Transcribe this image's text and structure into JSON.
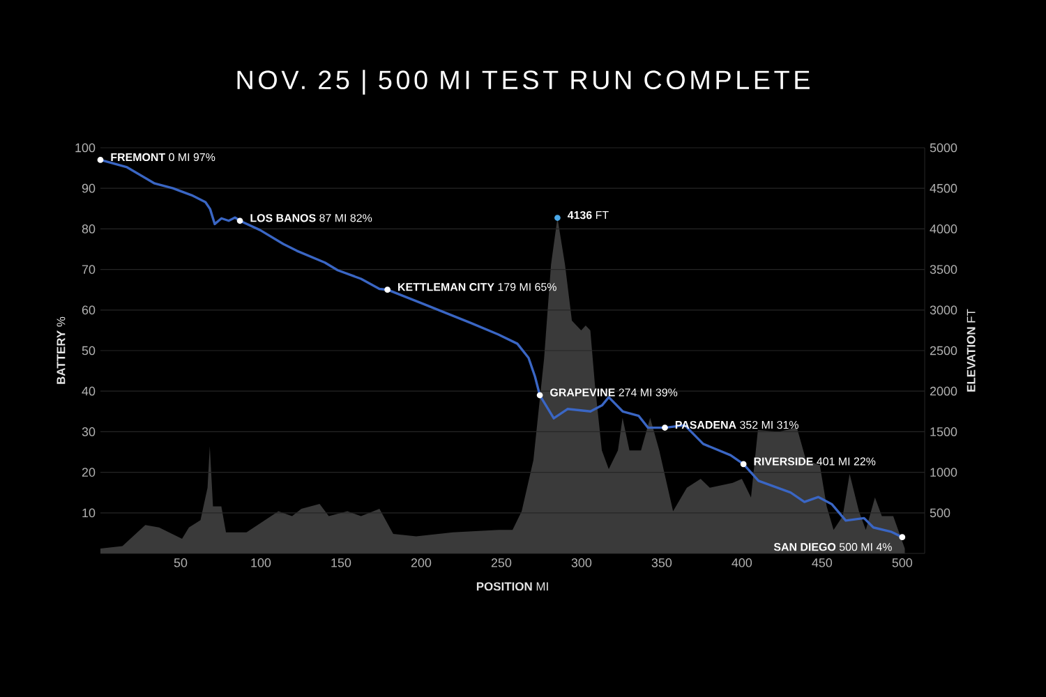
{
  "chart_data": {
    "type": "line",
    "title": "NOV. 25 | 500 MI TEST RUN COMPLETE",
    "xlabel": "**POSITION** MI",
    "ylabel": "**BATTERY** %",
    "y2label": "**ELEVATION** FT",
    "xlim": [
      0,
      514
    ],
    "xticks": [
      50,
      100,
      150,
      200,
      250,
      300,
      350,
      400,
      450,
      500
    ],
    "ylim": [
      0,
      100
    ],
    "yticks": [
      10,
      20,
      30,
      40,
      50,
      60,
      70,
      80,
      90,
      100
    ],
    "y2lim": [
      0,
      5000
    ],
    "y2ticks": [
      500,
      1000,
      1500,
      2000,
      2500,
      3000,
      3500,
      4000,
      4500,
      5000
    ],
    "grid": "y",
    "series": [
      {
        "type": "area",
        "axis": "y2",
        "color": "#3a3a3a",
        "x": [
          0,
          13.7,
          28,
          36.6,
          50.9,
          55.2,
          62.4,
          66.8,
          68.2,
          70.2,
          75.4,
          78.3,
          91.1,
          111,
          119.5,
          125.3,
          136.7,
          142.4,
          154,
          162.5,
          174,
          182.6,
          196.9,
          219.8,
          248.4,
          257,
          262.7,
          270,
          276.7,
          281,
          285,
          289.7,
          294,
          296.9,
          299.8,
          302.6,
          305.5,
          308.4,
          312.7,
          317,
          322.7,
          325.6,
          329.9,
          337.1,
          342.8,
          348.5,
          357.1,
          365.7,
          374.3,
          380,
          394.3,
          400,
          405.7,
          410,
          422.9,
          434.3,
          440,
          448.6,
          452.9,
          457.2,
          462.9,
          467.2,
          473,
          477.3,
          483,
          487.3,
          494.4,
          501.6
        ],
        "values": [
          60,
          90,
          350,
          320,
          180,
          320,
          410,
          810,
          1320,
          580,
          580,
          260,
          260,
          520,
          460,
          550,
          610,
          460,
          520,
          460,
          550,
          240,
          210,
          260,
          290,
          290,
          520,
          1150,
          2410,
          3560,
          4136,
          3560,
          2870,
          2810,
          2750,
          2810,
          2750,
          2070,
          1270,
          1040,
          1270,
          1670,
          1270,
          1270,
          1670,
          1270,
          520,
          810,
          920,
          810,
          870,
          920,
          690,
          1520,
          1500,
          1550,
          1150,
          1090,
          580,
          290,
          460,
          980,
          520,
          290,
          690,
          460,
          460,
          60
        ]
      },
      {
        "color": "#3a66c4",
        "x": [
          0,
          16.6,
          33.8,
          45.3,
          56.9,
          65.5,
          68.4,
          71.3,
          75.5,
          80,
          84,
          87,
          99.6,
          114,
          122.5,
          140,
          148,
          162.5,
          174,
          179,
          202,
          231,
          248,
          260,
          267,
          271,
          274,
          282.7,
          291.3,
          305.6,
          312.8,
          317,
          325.7,
          335.7,
          341.5,
          352,
          364.4,
          375.9,
          393,
          401,
          410.4,
          430.4,
          439,
          447.6,
          456.2,
          464.8,
          476.2,
          482,
          493.4,
          500
        ],
        "values": [
          97,
          95.2,
          91.2,
          90,
          88.3,
          86.6,
          84.9,
          81.2,
          82.6,
          82,
          82.8,
          82,
          79.7,
          76.3,
          74.6,
          71.7,
          69.8,
          67.7,
          65.2,
          65,
          61.4,
          56.8,
          54,
          51.7,
          48.2,
          43.6,
          39,
          33.3,
          35.6,
          35,
          36.5,
          38.5,
          35,
          33.9,
          31,
          31,
          31.6,
          27,
          24.2,
          22,
          17.9,
          15,
          12.7,
          13.9,
          12.1,
          8.1,
          8.7,
          6.4,
          5.3,
          4
        ]
      }
    ],
    "annotations": [
      {
        "text": "**FREMONT** 0 MI 97%",
        "x": 0,
        "y": 97
      },
      {
        "text": "**LOS BANOS** 87 MI 82%",
        "x": 87,
        "y": 82
      },
      {
        "text": "**KETTLEMAN CITY** 179 MI 65%",
        "x": 179,
        "y": 65
      },
      "**4136** FT",
      {
        "text": "**GRAPEVINE** 274 MI 39%",
        "x": 274,
        "y": 39
      },
      {
        "text": "**PASADENA** 352 MI 31%",
        "x": 352,
        "y": 31
      },
      {
        "text": "**RIVERSIDE** 401 MI 22%",
        "x": 401,
        "y": 22
      },
      {
        "text": "**SAN DIEGO** 500 MI 4%",
        "x": 500,
        "y": 4
      }
    ]
  }
}
